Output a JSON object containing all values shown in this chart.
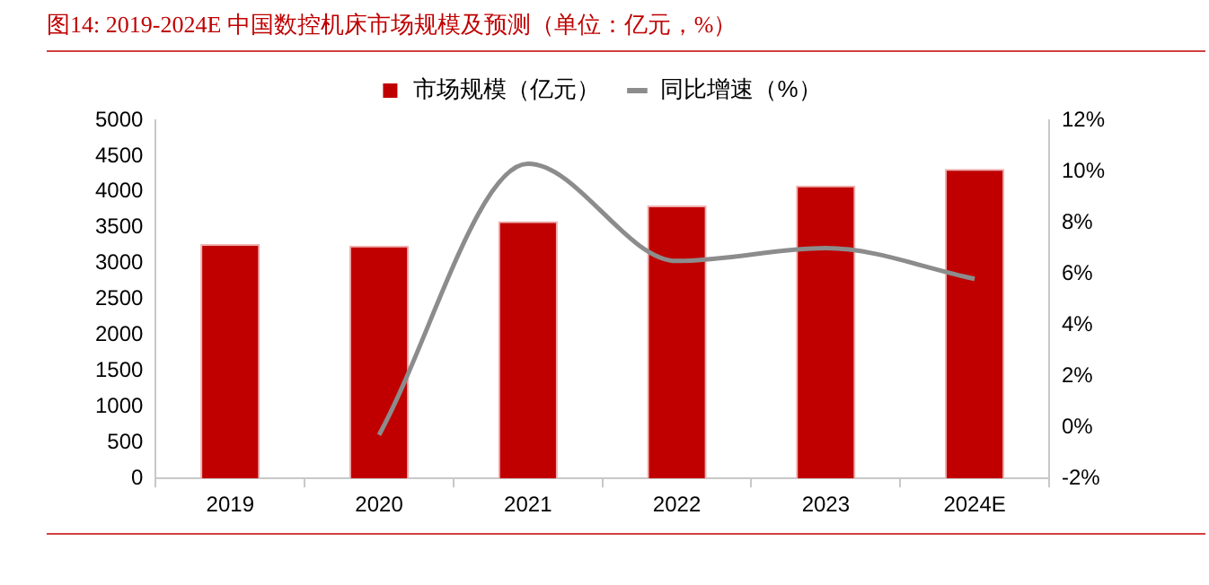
{
  "chart_data": {
    "type": "bar",
    "title": "图14:   2019-2024E 中国数控机床市场规模及预测（单位：亿元，%）",
    "categories": [
      "2019",
      "2020",
      "2021",
      "2022",
      "2023",
      "2024E"
    ],
    "series": [
      {
        "name": "市场规模（亿元）",
        "color": "#c00000",
        "values": [
          3270,
          3250,
          3590,
          3810,
          4090,
          4320
        ]
      },
      {
        "name": "同比增速（%）",
        "type": "line",
        "axis": "y2",
        "color": "#8c8c8c",
        "marker": "none",
        "values": [
          null,
          -0.3,
          10.3,
          6.5,
          7.0,
          5.8
        ]
      }
    ],
    "ylim": [
      0,
      5000
    ],
    "yticks": [
      0,
      500,
      1000,
      1500,
      2000,
      2500,
      3000,
      3500,
      4000,
      4500,
      5000
    ],
    "y2lim": [
      -2,
      12
    ],
    "y2ticks": [
      {
        "value": -2,
        "label": "-2%"
      },
      {
        "value": 0,
        "label": "0%"
      },
      {
        "value": 2,
        "label": "2%"
      },
      {
        "value": 4,
        "label": "4%"
      },
      {
        "value": 6,
        "label": "6%"
      },
      {
        "value": 8,
        "label": "8%"
      },
      {
        "value": 10,
        "label": "10%"
      },
      {
        "value": 12,
        "label": "12%"
      }
    ],
    "grid": false,
    "legend": "top"
  }
}
